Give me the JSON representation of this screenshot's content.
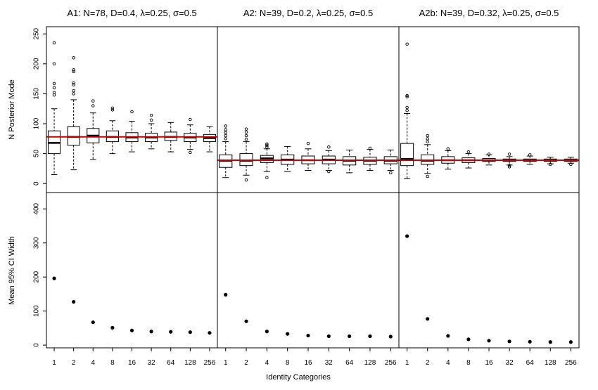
{
  "chart_data": {
    "type": "boxplot_and_scatter",
    "x_categories": [
      "1",
      "2",
      "4",
      "8",
      "16",
      "32",
      "64",
      "128",
      "256"
    ],
    "xlabel": "Identity Categories",
    "top_ylabel": "N Posterior Mode",
    "bottom_ylabel": "Mean 95% CI Width",
    "top_yticks": [
      "0",
      "50",
      "100",
      "150",
      "200",
      "250"
    ],
    "bottom_yticks": [
      "0",
      "100",
      "200",
      "300",
      "400"
    ],
    "top_ylim": [
      -15,
      262
    ],
    "bottom_ylim": [
      -8,
      448
    ],
    "reference_line_color": "#cc0000",
    "panels": [
      {
        "title": "A1: N=78, D=0.4, λ=0.25, σ=0.5",
        "true_N": 78,
        "boxes": [
          {
            "lo": 15,
            "q1": 50,
            "med": 68,
            "q3": 88,
            "hi": 125,
            "out": [
              148,
              152,
              160,
              167,
              200,
              235
            ]
          },
          {
            "lo": 23,
            "q1": 64,
            "med": 78,
            "q3": 95,
            "hi": 140,
            "out": [
              150,
              155,
              165,
              168,
              187,
              190,
              210
            ]
          },
          {
            "lo": 40,
            "q1": 68,
            "med": 80,
            "q3": 92,
            "hi": 118,
            "out": [
              130,
              138
            ]
          },
          {
            "lo": 50,
            "q1": 70,
            "med": 78,
            "q3": 88,
            "hi": 105,
            "out": [
              123,
              126
            ]
          },
          {
            "lo": 53,
            "q1": 70,
            "med": 77,
            "q3": 85,
            "hi": 104,
            "out": [
              120
            ]
          },
          {
            "lo": 58,
            "q1": 70,
            "med": 77,
            "q3": 84,
            "hi": 100,
            "out": [
              106,
              114
            ]
          },
          {
            "lo": 53,
            "q1": 72,
            "med": 78,
            "q3": 86,
            "hi": 102,
            "out": []
          },
          {
            "lo": 57,
            "q1": 70,
            "med": 77,
            "q3": 84,
            "hi": 98,
            "out": [
              52,
              107
            ]
          },
          {
            "lo": 53,
            "q1": 70,
            "med": 76,
            "q3": 82,
            "hi": 95,
            "out": []
          }
        ],
        "ci_width": [
          196,
          127,
          67,
          51,
          43,
          40,
          39,
          38,
          36
        ]
      },
      {
        "title": "A2: N=39, D=0.2, λ=0.25, σ=0.5",
        "true_N": 39,
        "boxes": [
          {
            "lo": 10,
            "q1": 27,
            "med": 38,
            "q3": 48,
            "hi": 70,
            "out": [
              75,
              80,
              85,
              90,
              96
            ]
          },
          {
            "lo": 14,
            "q1": 30,
            "med": 38,
            "q3": 50,
            "hi": 70,
            "out": [
              6,
              74,
              80,
              86,
              91
            ]
          },
          {
            "lo": 20,
            "q1": 35,
            "med": 42,
            "q3": 47,
            "hi": 58,
            "out": [
              10,
              61,
              64,
              66
            ]
          },
          {
            "lo": 20,
            "q1": 32,
            "med": 40,
            "q3": 48,
            "hi": 62,
            "out": []
          },
          {
            "lo": 22,
            "q1": 33,
            "med": 39,
            "q3": 46,
            "hi": 58,
            "out": [
              67
            ]
          },
          {
            "lo": 22,
            "q1": 33,
            "med": 40,
            "q3": 46,
            "hi": 55,
            "out": [
              20,
              61
            ]
          },
          {
            "lo": 18,
            "q1": 31,
            "med": 38,
            "q3": 45,
            "hi": 56,
            "out": []
          },
          {
            "lo": 22,
            "q1": 32,
            "med": 38,
            "q3": 44,
            "hi": 57,
            "out": [
              59
            ]
          },
          {
            "lo": 22,
            "q1": 33,
            "med": 38,
            "q3": 45,
            "hi": 56,
            "out": [
              18
            ]
          }
        ],
        "ci_width": [
          148,
          70,
          40,
          33,
          28,
          26,
          26,
          26,
          25
        ]
      },
      {
        "title": "A2b: N=39, D=0.32, λ=0.25, σ=0.5",
        "true_N": 39,
        "boxes": [
          {
            "lo": 8,
            "q1": 30,
            "med": 41,
            "q3": 67,
            "hi": 117,
            "out": [
              122,
              127,
              145,
              147,
              233
            ]
          },
          {
            "lo": 17,
            "q1": 32,
            "med": 38,
            "q3": 48,
            "hi": 65,
            "out": [
              12,
              70,
              75,
              80
            ]
          },
          {
            "lo": 24,
            "q1": 34,
            "med": 39,
            "q3": 45,
            "hi": 55,
            "out": [
              58
            ]
          },
          {
            "lo": 26,
            "q1": 35,
            "med": 39,
            "q3": 43,
            "hi": 50,
            "out": [
              53
            ]
          },
          {
            "lo": 31,
            "q1": 37,
            "med": 39,
            "q3": 42,
            "hi": 48,
            "out": [
              49
            ]
          },
          {
            "lo": 31,
            "q1": 37,
            "med": 39,
            "q3": 41,
            "hi": 45,
            "out": [
              28,
              30,
              49
            ]
          },
          {
            "lo": 32,
            "q1": 37,
            "med": 39,
            "q3": 41,
            "hi": 46,
            "out": [
              48
            ]
          },
          {
            "lo": 33,
            "q1": 37,
            "med": 39,
            "q3": 41,
            "hi": 44,
            "out": [
              32
            ]
          },
          {
            "lo": 34,
            "q1": 37,
            "med": 39,
            "q3": 41,
            "hi": 44,
            "out": [
              32
            ]
          }
        ],
        "ci_width": [
          320,
          77,
          27,
          17,
          13,
          11,
          10,
          9,
          9
        ]
      }
    ]
  }
}
